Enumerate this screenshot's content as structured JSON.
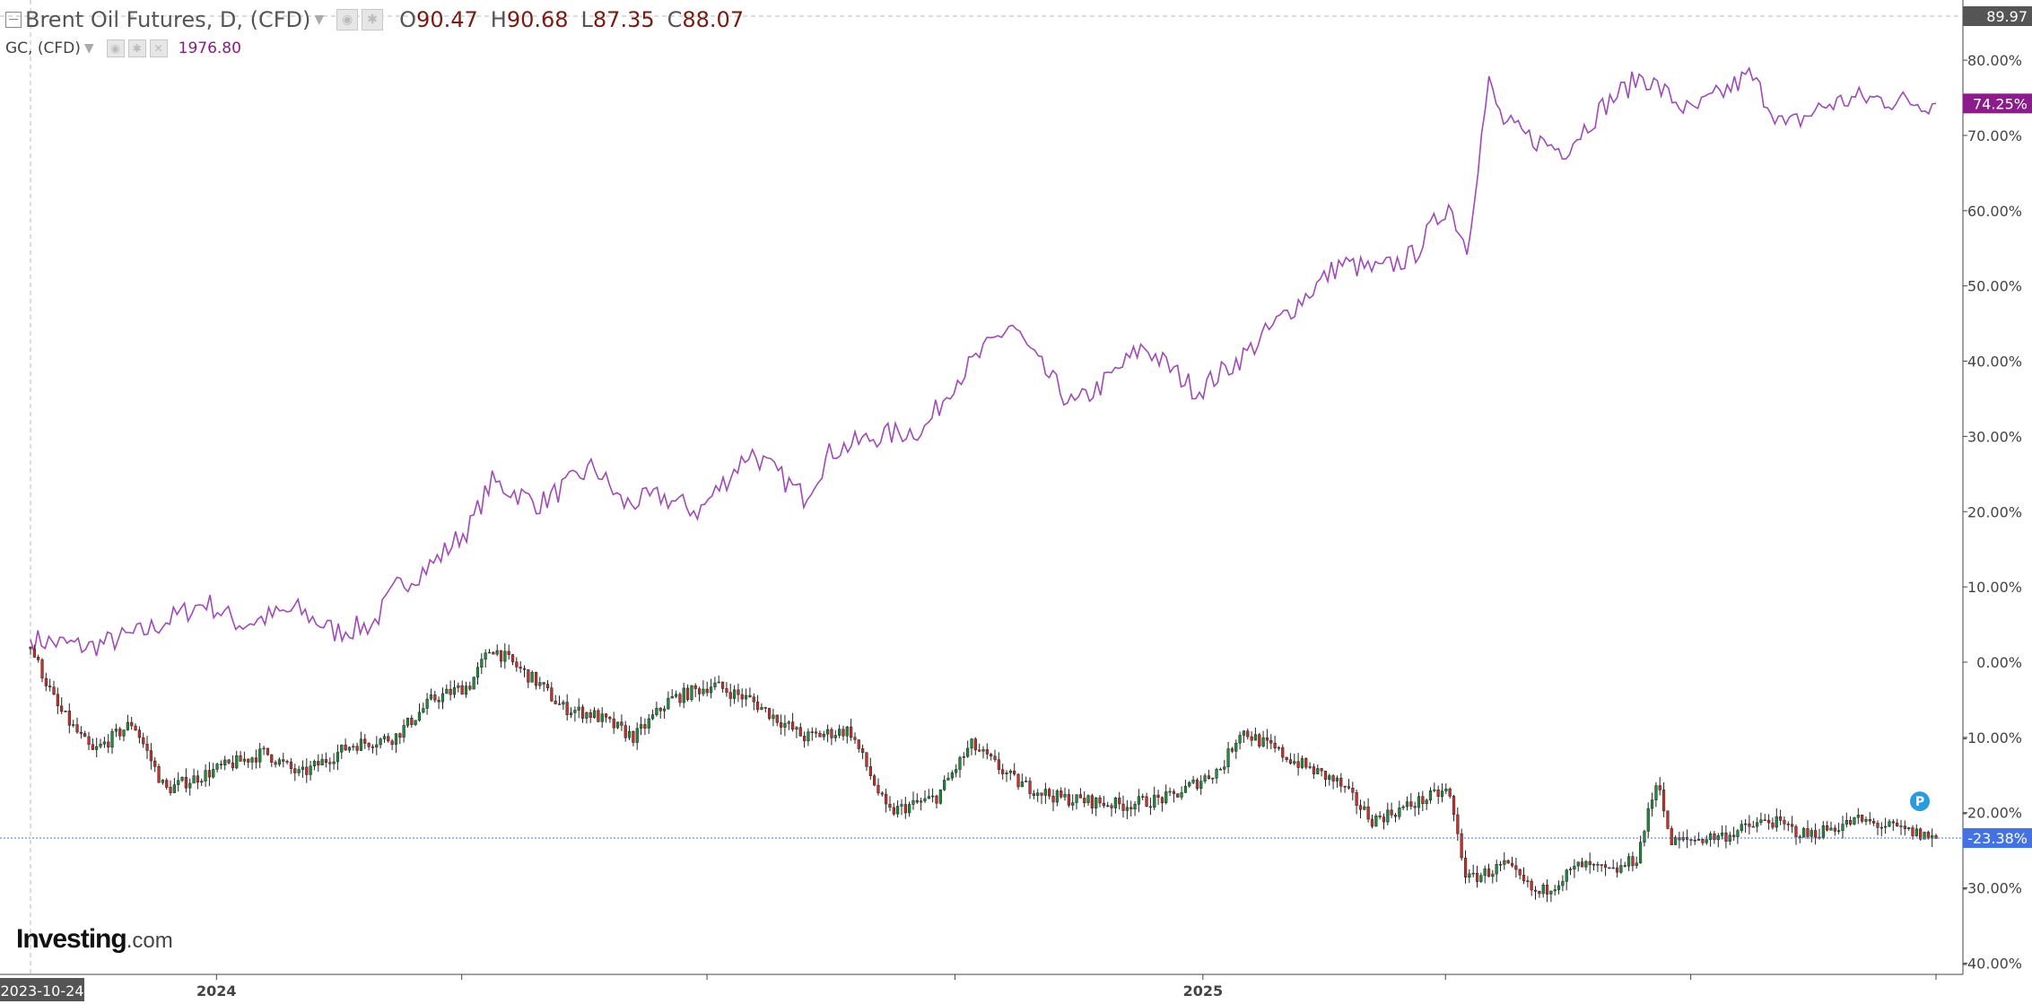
{
  "legend": {
    "main": {
      "title": "Brent Oil Futures, D, (CFD)",
      "o_label": "O",
      "o": "90.47",
      "h_label": "H",
      "h": "90.68",
      "l_label": "L",
      "l": "87.35",
      "c_label": "C",
      "c": "88.07"
    },
    "overlay": {
      "title": "GC, (CFD)",
      "value": "1976.80"
    }
  },
  "price_badges": {
    "top": "89.97",
    "gold": "74.25%",
    "brent": "-23.38%"
  },
  "time_labels": {
    "start": "2023-10-24",
    "year1": "2024",
    "year2": "2025"
  },
  "marker": "P",
  "logo": {
    "brand": "Investing",
    "suffix": ".com"
  },
  "colors": {
    "gold_line": "#a04ab8",
    "up": "#1e8c3a",
    "down": "#c8312a",
    "brent_badge": "#4472e0",
    "gold_badge": "#8c1c8c"
  },
  "chart_data": {
    "type": "line",
    "x_start": "2023-10-24",
    "x_end": "2025-09-30",
    "y_axis": {
      "unit": "%",
      "ticks": [
        -40,
        -30,
        -20,
        -10,
        0,
        10,
        20,
        30,
        40,
        50,
        60,
        70,
        80
      ],
      "ylim": [
        -41.5,
        88
      ]
    },
    "series": [
      {
        "name": "GC, (CFD)",
        "style": "line",
        "points": [
          [
            "2023-10-24",
            3
          ],
          [
            "2023-11-15",
            2
          ],
          [
            "2023-12-05",
            4
          ],
          [
            "2023-12-28",
            8
          ],
          [
            "2024-01-10",
            5
          ],
          [
            "2024-01-31",
            7
          ],
          [
            "2024-02-14",
            4
          ],
          [
            "2024-02-28",
            5
          ],
          [
            "2024-03-08",
            10
          ],
          [
            "2024-03-21",
            13
          ],
          [
            "2024-04-04",
            18
          ],
          [
            "2024-04-12",
            24
          ],
          [
            "2024-04-30",
            21
          ],
          [
            "2024-05-20",
            26
          ],
          [
            "2024-05-31",
            21
          ],
          [
            "2024-06-14",
            22
          ],
          [
            "2024-06-28",
            20
          ],
          [
            "2024-07-17",
            28
          ],
          [
            "2024-08-06",
            22
          ],
          [
            "2024-08-16",
            28
          ],
          [
            "2024-09-02",
            30
          ],
          [
            "2024-09-20",
            31
          ],
          [
            "2024-09-30",
            37
          ],
          [
            "2024-10-22",
            45
          ],
          [
            "2024-10-31",
            40
          ],
          [
            "2024-11-14",
            34
          ],
          [
            "2024-11-25",
            37
          ],
          [
            "2024-12-10",
            42
          ],
          [
            "2024-12-30",
            36
          ],
          [
            "2025-01-17",
            41
          ],
          [
            "2025-01-31",
            46
          ],
          [
            "2025-02-21",
            53
          ],
          [
            "2025-03-07",
            52
          ],
          [
            "2025-03-20",
            54
          ],
          [
            "2025-04-02",
            61
          ],
          [
            "2025-04-09",
            55
          ],
          [
            "2025-04-17",
            77
          ],
          [
            "2025-04-22",
            72
          ],
          [
            "2025-04-30",
            70
          ],
          [
            "2025-05-15",
            68
          ],
          [
            "2025-05-30",
            74
          ],
          [
            "2025-06-13",
            78
          ],
          [
            "2025-07-01",
            73
          ],
          [
            "2025-07-23",
            78
          ],
          [
            "2025-08-05",
            71
          ],
          [
            "2025-08-20",
            74
          ],
          [
            "2025-09-01",
            75
          ],
          [
            "2025-09-30",
            74.25
          ]
        ]
      },
      {
        "name": "Brent Oil Futures, D, (CFD)",
        "style": "candlestick",
        "points": [
          [
            "2023-10-24",
            2
          ],
          [
            "2023-11-03",
            -6
          ],
          [
            "2023-11-16",
            -12
          ],
          [
            "2023-12-01",
            -8
          ],
          [
            "2023-12-13",
            -17
          ],
          [
            "2024-01-03",
            -14
          ],
          [
            "2024-01-19",
            -12
          ],
          [
            "2024-02-01",
            -15
          ],
          [
            "2024-02-20",
            -11
          ],
          [
            "2024-03-07",
            -10
          ],
          [
            "2024-03-21",
            -5
          ],
          [
            "2024-04-04",
            -3
          ],
          [
            "2024-04-12",
            2
          ],
          [
            "2024-04-30",
            -3
          ],
          [
            "2024-05-08",
            -6
          ],
          [
            "2024-05-20",
            -7
          ],
          [
            "2024-06-04",
            -10
          ],
          [
            "2024-06-17",
            -5
          ],
          [
            "2024-07-03",
            -3
          ],
          [
            "2024-07-17",
            -5
          ],
          [
            "2024-08-06",
            -10
          ],
          [
            "2024-08-23",
            -9
          ],
          [
            "2024-09-06",
            -20
          ],
          [
            "2024-09-24",
            -18
          ],
          [
            "2024-10-07",
            -11
          ],
          [
            "2024-10-24",
            -16
          ],
          [
            "2024-11-08",
            -18
          ],
          [
            "2024-12-02",
            -19
          ],
          [
            "2024-12-20",
            -18
          ],
          [
            "2025-01-08",
            -14
          ],
          [
            "2025-01-15",
            -9
          ],
          [
            "2025-02-03",
            -13
          ],
          [
            "2025-02-20",
            -16
          ],
          [
            "2025-03-05",
            -21
          ],
          [
            "2025-03-26",
            -18
          ],
          [
            "2025-04-02",
            -17
          ],
          [
            "2025-04-09",
            -29
          ],
          [
            "2025-04-23",
            -27
          ],
          [
            "2025-05-05",
            -31
          ],
          [
            "2025-05-21",
            -27
          ],
          [
            "2025-06-02",
            -28
          ],
          [
            "2025-06-11",
            -26
          ],
          [
            "2025-06-19",
            -15
          ],
          [
            "2025-06-23",
            -24
          ],
          [
            "2025-07-14",
            -23
          ],
          [
            "2025-07-30",
            -21
          ],
          [
            "2025-08-13",
            -23
          ],
          [
            "2025-09-01",
            -21
          ],
          [
            "2025-09-30",
            -23.38
          ]
        ]
      }
    ],
    "overlay_value": 1976.8,
    "current_price": 89.97,
    "current_changes": {
      "GC, (CFD)": 74.25,
      "Brent Oil Futures, D, (CFD)": -23.38
    },
    "grid": false,
    "legend_position": "top-left"
  }
}
